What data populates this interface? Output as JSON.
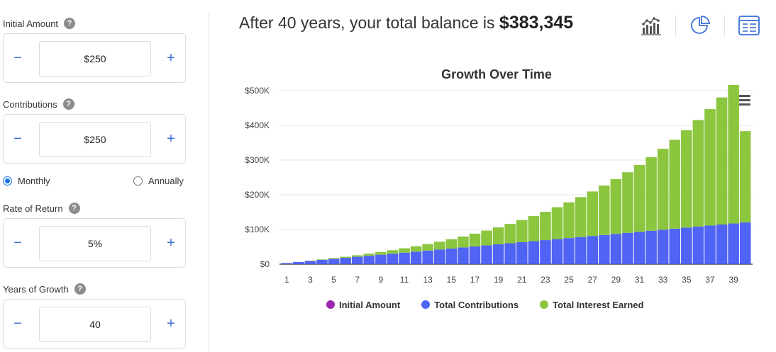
{
  "inputs": {
    "initial_amount": {
      "label": "Initial Amount",
      "help": "?",
      "value": "$250",
      "minus": "−",
      "plus": "+"
    },
    "contributions": {
      "label": "Contributions",
      "help": "?",
      "value": "$250",
      "minus": "−",
      "plus": "+"
    },
    "frequency": {
      "options": [
        "Monthly",
        "Annually"
      ],
      "selected": "Monthly"
    },
    "rate_of_return": {
      "label": "Rate of Return",
      "help": "?",
      "value": "5%",
      "minus": "−",
      "plus": "+"
    },
    "years_of_growth": {
      "label": "Years of Growth",
      "help": "?",
      "value": "40",
      "minus": "−",
      "plus": "+"
    }
  },
  "summary": {
    "prefix": "After 40 years, your total balance is",
    "amount": "$383,345"
  },
  "view_icons": [
    "bar-chart-icon",
    "pie-chart-icon",
    "table-view-icon"
  ],
  "colors": {
    "initial": "#9c27b0",
    "contributions": "#4f63f5",
    "interest": "#8cc63f",
    "accent": "#3a6fd8"
  },
  "chart_data": {
    "type": "bar",
    "stacked": true,
    "title": "Growth Over Time",
    "categories": [
      1,
      2,
      3,
      4,
      5,
      6,
      7,
      8,
      9,
      10,
      11,
      12,
      13,
      14,
      15,
      16,
      17,
      18,
      19,
      20,
      21,
      22,
      23,
      24,
      25,
      26,
      27,
      28,
      29,
      30,
      31,
      32,
      33,
      34,
      35,
      36,
      37,
      38,
      39,
      40
    ],
    "x_tick_labels": [
      "1",
      "3",
      "5",
      "7",
      "9",
      "11",
      "13",
      "15",
      "17",
      "19",
      "21",
      "23",
      "25",
      "27",
      "29",
      "31",
      "33",
      "35",
      "37",
      "39"
    ],
    "y_tick_labels": [
      "$0",
      "$100K",
      "$200K",
      "$300K",
      "$400K",
      "$500K"
    ],
    "ylim": [
      0,
      500000
    ],
    "grid": true,
    "legend_position": "bottom",
    "series": [
      {
        "name": "Initial Amount",
        "color": "#9c27b0",
        "values": [
          250,
          250,
          250,
          250,
          250,
          250,
          250,
          250,
          250,
          250,
          250,
          250,
          250,
          250,
          250,
          250,
          250,
          250,
          250,
          250,
          250,
          250,
          250,
          250,
          250,
          250,
          250,
          250,
          250,
          250,
          250,
          250,
          250,
          250,
          250,
          250,
          250,
          250,
          250,
          250
        ]
      },
      {
        "name": "Total Contributions",
        "color": "#4f63f5",
        "values": [
          3000,
          6000,
          9000,
          12000,
          15000,
          18000,
          21000,
          24000,
          27000,
          30000,
          33000,
          36000,
          39000,
          42000,
          45000,
          48000,
          51000,
          54000,
          57000,
          60000,
          63000,
          66000,
          69000,
          72000,
          75000,
          78000,
          81000,
          84000,
          87000,
          90000,
          93000,
          96000,
          99000,
          102000,
          105000,
          108000,
          111000,
          114000,
          117000,
          120000
        ]
      },
      {
        "name": "Total Interest Earned",
        "color": "#8cc63f",
        "values": [
          82,
          314,
          724,
          1320,
          2130,
          3170,
          4460,
          6020,
          7880,
          10060,
          12590,
          15490,
          18800,
          22540,
          26740,
          31440,
          36680,
          42490,
          48920,
          56010,
          63800,
          72340,
          81680,
          91880,
          102990,
          115080,
          128210,
          142460,
          157900,
          174620,
          192700,
          212240,
          233340,
          256100,
          280640,
          307080,
          335540,
          366180,
          399140,
          263095
        ]
      }
    ]
  }
}
